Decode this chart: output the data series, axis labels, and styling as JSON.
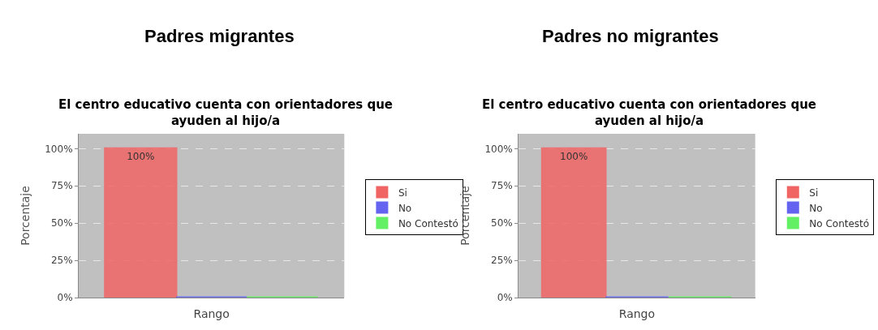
{
  "chart_data": [
    {
      "type": "bar",
      "title": "Padres migrantes",
      "subtitle": "El centro educativo cuenta con orientadores que\nayuden al hijo/a",
      "xlabel": "Rango",
      "ylabel": "Porcentaje",
      "categories": [
        null
      ],
      "series": [
        {
          "name": "Si",
          "color": "#f06464",
          "values": [
            100
          ],
          "value_labels": [
            "100%"
          ]
        },
        {
          "name": "No",
          "color": "#6464f0",
          "values": [
            0
          ],
          "value_labels": [
            null
          ]
        },
        {
          "name": "No Contestó",
          "color": "#64f064",
          "values": [
            0
          ],
          "value_labels": [
            null
          ]
        }
      ],
      "ylim": [
        0,
        110
      ],
      "yticks": [
        {
          "value": 0,
          "label": "0%"
        },
        {
          "value": 25,
          "label": "25%"
        },
        {
          "value": 50,
          "label": "50%"
        },
        {
          "value": 75,
          "label": "75%"
        },
        {
          "value": 100,
          "label": "100%"
        }
      ],
      "grid": "y",
      "legend": "right",
      "tick_labels": "y"
    },
    {
      "type": "bar",
      "title": "Padres no migrantes",
      "subtitle": "El centro educativo cuenta con orientadores que\nayuden al hijo/a",
      "xlabel": "Rango",
      "ylabel": "Porcentaje",
      "categories": [
        null
      ],
      "series": [
        {
          "name": "Si",
          "color": "#f06464",
          "values": [
            100
          ],
          "value_labels": [
            "100%"
          ]
        },
        {
          "name": "No",
          "color": "#6464f0",
          "values": [
            0
          ],
          "value_labels": [
            null
          ]
        },
        {
          "name": "No Contestó",
          "color": "#64f064",
          "values": [
            0
          ],
          "value_labels": [
            null
          ]
        }
      ],
      "ylim": [
        0,
        110
      ],
      "yticks": [
        {
          "value": 0,
          "label": "0%"
        },
        {
          "value": 25,
          "label": "25%"
        },
        {
          "value": 50,
          "label": "50%"
        },
        {
          "value": 75,
          "label": "75%"
        },
        {
          "value": 100,
          "label": "100%"
        }
      ],
      "grid": "y",
      "legend": "right",
      "tick_labels": "y"
    }
  ]
}
